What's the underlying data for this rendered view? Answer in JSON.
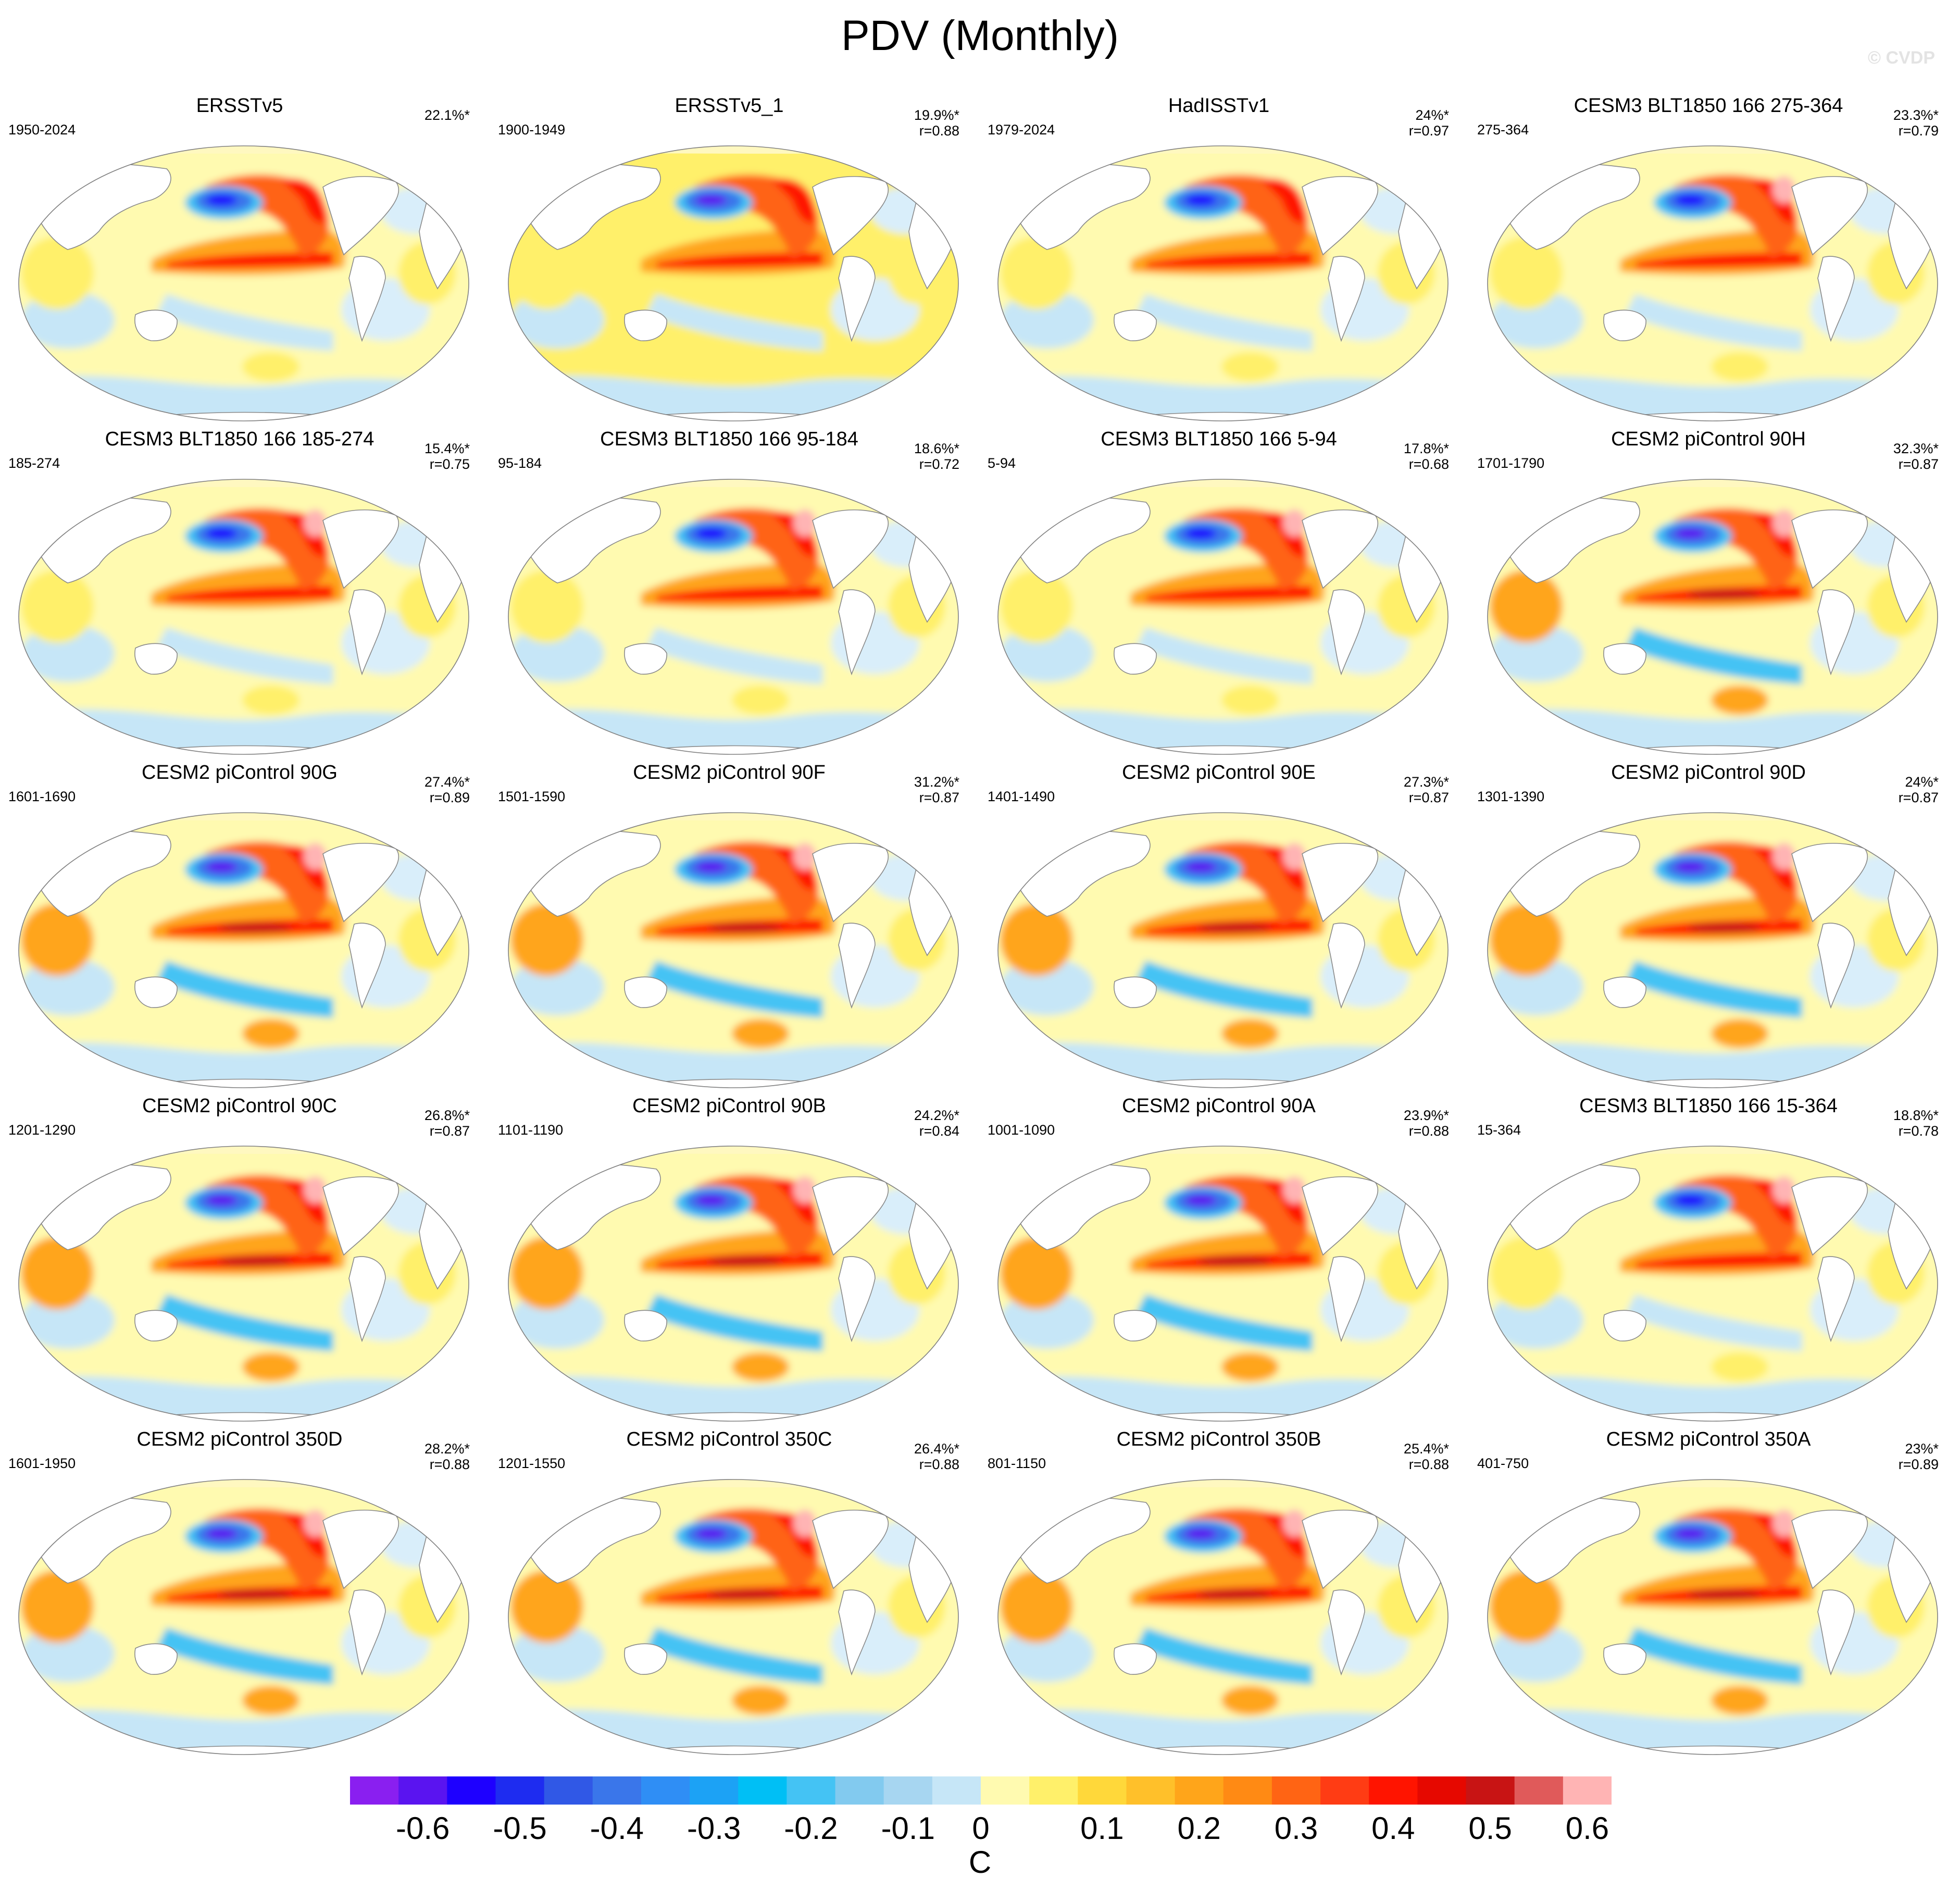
{
  "title": "PDV (Monthly)",
  "watermark": "© CVDP",
  "panels": [
    {
      "title": "ERSSTv5",
      "period": "1950-2024",
      "pct": "22.1%*",
      "corr": "",
      "variant": 0
    },
    {
      "title": "ERSSTv5_1",
      "period": "1900-1949",
      "pct": "19.9%*",
      "corr": "r=0.88",
      "variant": 1
    },
    {
      "title": "HadISSTv1",
      "period": "1979-2024",
      "pct": "24%*",
      "corr": "r=0.97",
      "variant": 0
    },
    {
      "title": "CESM3 BLT1850 166 275-364",
      "period": "275-364",
      "pct": "23.3%*",
      "corr": "r=0.79",
      "variant": 2
    },
    {
      "title": "CESM3 BLT1850 166 185-274",
      "period": "185-274",
      "pct": "15.4%*",
      "corr": "r=0.75",
      "variant": 2
    },
    {
      "title": "CESM3 BLT1850 166 95-184",
      "period": "95-184",
      "pct": "18.6%*",
      "corr": "r=0.72",
      "variant": 2
    },
    {
      "title": "CESM3 BLT1850 166 5-94",
      "period": "5-94",
      "pct": "17.8%*",
      "corr": "r=0.68",
      "variant": 2
    },
    {
      "title": "CESM2 piControl 90H",
      "period": "1701-1790",
      "pct": "32.3%*",
      "corr": "r=0.87",
      "variant": 3
    },
    {
      "title": "CESM2 piControl 90G",
      "period": "1601-1690",
      "pct": "27.4%*",
      "corr": "r=0.89",
      "variant": 3
    },
    {
      "title": "CESM2 piControl 90F",
      "period": "1501-1590",
      "pct": "31.2%*",
      "corr": "r=0.87",
      "variant": 3
    },
    {
      "title": "CESM2 piControl 90E",
      "period": "1401-1490",
      "pct": "27.3%*",
      "corr": "r=0.87",
      "variant": 3
    },
    {
      "title": "CESM2 piControl 90D",
      "period": "1301-1390",
      "pct": "24%*",
      "corr": "r=0.87",
      "variant": 3
    },
    {
      "title": "CESM2 piControl 90C",
      "period": "1201-1290",
      "pct": "26.8%*",
      "corr": "r=0.87",
      "variant": 3
    },
    {
      "title": "CESM2 piControl 90B",
      "period": "1101-1190",
      "pct": "24.2%*",
      "corr": "r=0.84",
      "variant": 3
    },
    {
      "title": "CESM2 piControl 90A",
      "period": "1001-1090",
      "pct": "23.9%*",
      "corr": "r=0.88",
      "variant": 3
    },
    {
      "title": "CESM3 BLT1850 166 15-364",
      "period": "15-364",
      "pct": "18.8%*",
      "corr": "r=0.78",
      "variant": 2
    },
    {
      "title": "CESM2 piControl 350D",
      "period": "1601-1950",
      "pct": "28.2%*",
      "corr": "r=0.88",
      "variant": 3
    },
    {
      "title": "CESM2 piControl 350C",
      "period": "1201-1550",
      "pct": "26.4%*",
      "corr": "r=0.88",
      "variant": 3
    },
    {
      "title": "CESM2 piControl 350B",
      "period": "801-1150",
      "pct": "25.4%*",
      "corr": "r=0.88",
      "variant": 3
    },
    {
      "title": "CESM2 piControl 350A",
      "period": "401-750",
      "pct": "23%*",
      "corr": "r=0.89",
      "variant": 3
    }
  ],
  "colorbar": {
    "colors": [
      "#8a1ff0",
      "#5a14f0",
      "#1e00ff",
      "#1e2cf0",
      "#3058e6",
      "#3a76ea",
      "#2f8ef5",
      "#1ca2f5",
      "#00bff5",
      "#44c3f4",
      "#82caef",
      "#a7d6f1",
      "#c6e6f7",
      "#fffab0",
      "#fff06a",
      "#ffd83a",
      "#ffc02a",
      "#ffa51a",
      "#ff8a14",
      "#ff6414",
      "#ff3c14",
      "#ff1400",
      "#e60800",
      "#c81414",
      "#e05a5a",
      "#ffb4b4"
    ],
    "tick_labels": [
      "-0.6",
      "-0.5",
      "-0.4",
      "-0.3",
      "-0.2",
      "-0.1",
      "0",
      "0.1",
      "0.2",
      "0.3",
      "0.4",
      "0.5",
      "0.6"
    ],
    "unit": "C"
  }
}
